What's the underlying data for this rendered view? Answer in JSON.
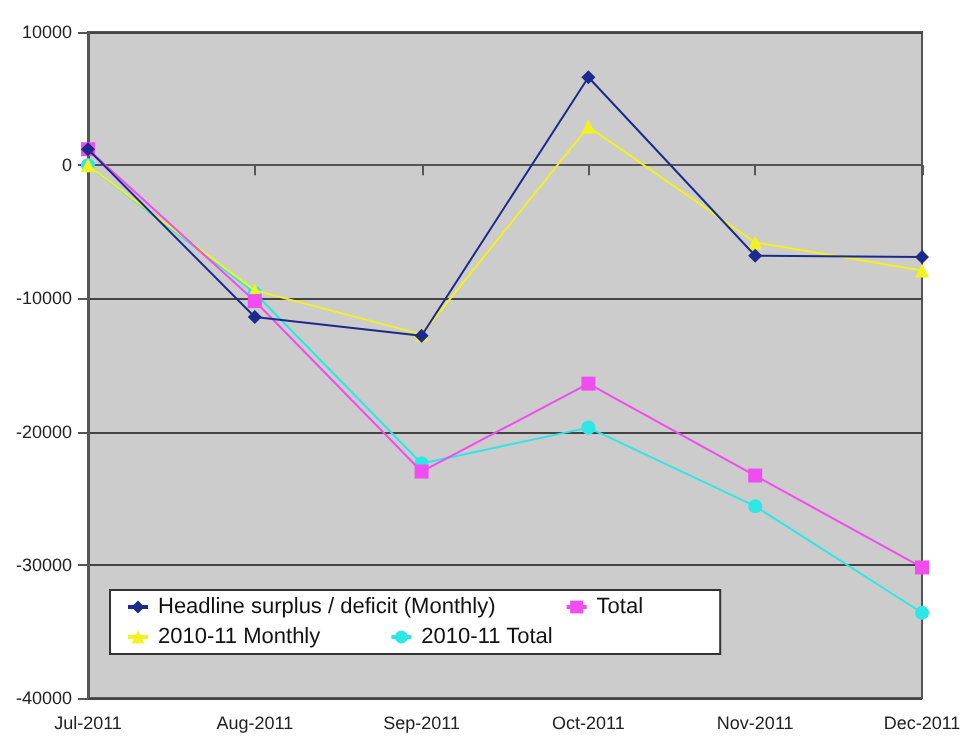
{
  "chart_data": {
    "type": "line",
    "categories": [
      "Jul-2011",
      "Aug-2011",
      "Sep-2011",
      "Oct-2011",
      "Nov-2011",
      "Dec-2011"
    ],
    "series": [
      {
        "name": "Headline surplus / deficit (Monthly)",
        "color": "#1c2a8c",
        "marker": "diamond",
        "values": [
          1200,
          -11400,
          -12800,
          6600,
          -6800,
          -6900
        ]
      },
      {
        "name": "Total",
        "color": "#f04cf0",
        "marker": "square",
        "values": [
          1200,
          -10200,
          -23000,
          -16400,
          -23300,
          -30200
        ]
      },
      {
        "name": "2010-11 Monthly",
        "color": "#f2f21e",
        "marker": "triangle",
        "values": [
          0,
          -9400,
          -12700,
          2900,
          -5800,
          -7900
        ]
      },
      {
        "name": "2010-11 Total",
        "color": "#2ee6e6",
        "marker": "circle",
        "values": [
          0,
          -9600,
          -22400,
          -19700,
          -25600,
          -33600
        ]
      }
    ],
    "ylim": [
      -40000,
      10000
    ],
    "yticks": [
      -40000,
      -30000,
      -20000,
      -10000,
      0,
      10000
    ],
    "grid": "y",
    "legend": "bottom left",
    "line_style": "solid"
  }
}
